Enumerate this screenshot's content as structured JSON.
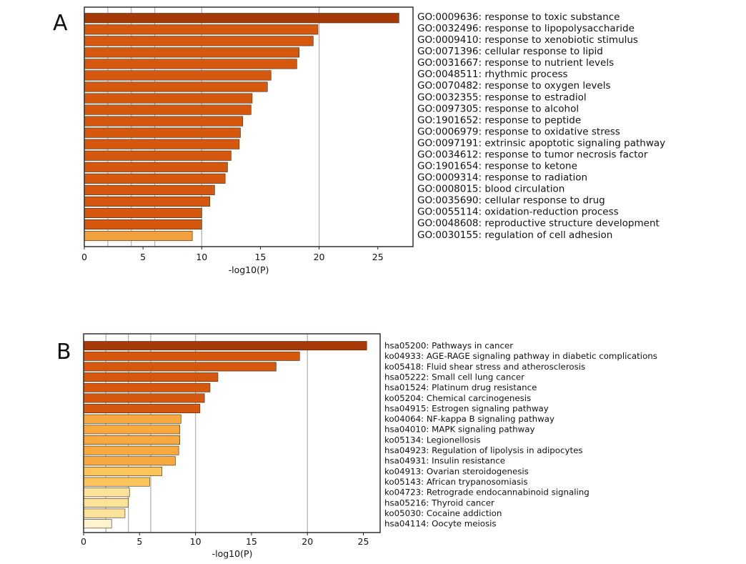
{
  "chart_data": [
    {
      "panel": "A",
      "type": "bar",
      "orientation": "horizontal",
      "xlabel": "-log10(P)",
      "xlim": [
        0,
        28
      ],
      "xticks": [
        0,
        5,
        10,
        15,
        20,
        25
      ],
      "gridlines": [
        2,
        4,
        6,
        10,
        20
      ],
      "categories": [
        "GO:0009636: response to toxic substance",
        "GO:0032496: response to lipopolysaccharide",
        "GO:0009410: response to xenobiotic stimulus",
        "GO:0071396: cellular response to lipid",
        "GO:0031667: response to nutrient levels",
        "GO:0048511: rhythmic process",
        "GO:0070482: response to oxygen levels",
        "GO:0032355: response to estradiol",
        "GO:0097305: response to alcohol",
        "GO:1901652: response to peptide",
        "GO:0006979: response to oxidative stress",
        "GO:0097191: extrinsic apoptotic signaling pathway",
        "GO:0034612: response to tumor necrosis factor",
        "GO:1901654: response to ketone",
        "GO:0009314: response to radiation",
        "GO:0008015: blood circulation",
        "GO:0035690: cellular response to drug",
        "GO:0055114: oxidation-reduction process",
        "GO:0048608: reproductive structure development",
        "GO:0030155: regulation of cell adhesion"
      ],
      "values": [
        26.8,
        19.9,
        19.5,
        18.3,
        18.1,
        15.9,
        15.6,
        14.3,
        14.2,
        13.5,
        13.3,
        13.2,
        12.5,
        12.2,
        12.0,
        11.1,
        10.7,
        10.0,
        10.0,
        9.2
      ],
      "colors": [
        "#a63a07",
        "#d5580e",
        "#d5580e",
        "#d5580e",
        "#d5580e",
        "#d5580e",
        "#d5580e",
        "#d5580e",
        "#d5580e",
        "#d5580e",
        "#d5580e",
        "#d5580e",
        "#d5580e",
        "#d5580e",
        "#d5580e",
        "#d5580e",
        "#d5580e",
        "#d5580e",
        "#d5580e",
        "#f3a03f"
      ]
    },
    {
      "panel": "B",
      "type": "bar",
      "orientation": "horizontal",
      "xlabel": "-log10(P)",
      "xlim": [
        0,
        26.5
      ],
      "xticks": [
        0,
        5,
        10,
        15,
        20,
        25
      ],
      "gridlines": [
        2,
        4,
        6,
        10,
        20
      ],
      "categories": [
        "hsa05200: Pathways in cancer",
        "ko04933: AGE-RAGE signaling pathway in diabetic complications",
        "ko05418: Fluid shear stress and atherosclerosis",
        "hsa05222: Small cell lung cancer",
        "hsa01524: Platinum drug resistance",
        "ko05204: Chemical carcinogenesis",
        "hsa04915: Estrogen signaling pathway",
        "ko04064: NF-kappa B signaling pathway",
        "hsa04010: MAPK signaling pathway",
        "ko05134: Legionellosis",
        "hsa04923: Regulation of lipolysis in adipocytes",
        "hsa04931: Insulin resistance",
        "ko04913: Ovarian steroidogenesis",
        "ko05143: African trypanosomiasis",
        "ko04723: Retrograde endocannabinoid signaling",
        "hsa05216: Thyroid cancer",
        "ko05030: Cocaine addiction",
        "hsa04114: Oocyte meiosis"
      ],
      "values": [
        25.3,
        19.3,
        17.2,
        12.0,
        11.3,
        10.8,
        10.4,
        8.7,
        8.6,
        8.6,
        8.5,
        8.2,
        7.0,
        5.9,
        4.1,
        4.0,
        3.7,
        2.5
      ],
      "colors": [
        "#a63a07",
        "#d5580e",
        "#d5580e",
        "#d5580e",
        "#d5580e",
        "#d5580e",
        "#d5580e",
        "#f7a93f",
        "#f7a93f",
        "#f7a93f",
        "#f7a93f",
        "#f7a93f",
        "#fcc55c",
        "#fcc55c",
        "#fde39a",
        "#fde39a",
        "#fde39a",
        "#fef4cf"
      ]
    }
  ]
}
